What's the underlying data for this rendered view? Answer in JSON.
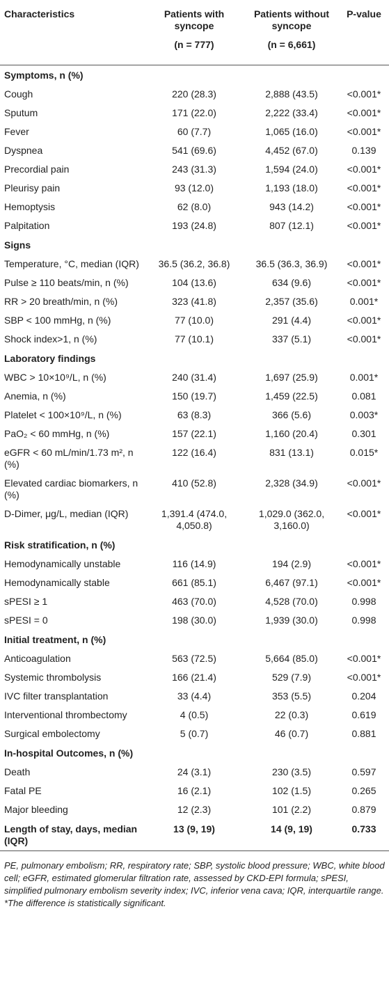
{
  "header": {
    "columns": [
      "Characteristics",
      "Patients with syncope",
      "Patients without syncope",
      "P-value"
    ],
    "counts": [
      "(n = 777)",
      "(n = 6,661)"
    ]
  },
  "sections": [
    {
      "title": "Symptoms, n (%)",
      "rows": [
        [
          "Cough",
          "220 (28.3)",
          "2,888 (43.5)",
          "<0.001*"
        ],
        [
          "Sputum",
          "171 (22.0)",
          "2,222 (33.4)",
          "<0.001*"
        ],
        [
          "Fever",
          "60 (7.7)",
          "1,065 (16.0)",
          "<0.001*"
        ],
        [
          "Dyspnea",
          "541 (69.6)",
          "4,452 (67.0)",
          "0.139"
        ],
        [
          "Precordial pain",
          "243 (31.3)",
          "1,594 (24.0)",
          "<0.001*"
        ],
        [
          "Pleurisy pain",
          "93 (12.0)",
          "1,193 (18.0)",
          "<0.001*"
        ],
        [
          "Hemoptysis",
          "62 (8.0)",
          "943 (14.2)",
          "<0.001*"
        ],
        [
          "Palpitation",
          "193 (24.8)",
          "807 (12.1)",
          "<0.001*"
        ]
      ]
    },
    {
      "title": "Signs",
      "rows": [
        [
          "Temperature, °C, median (IQR)",
          "36.5 (36.2, 36.8)",
          "36.5 (36.3, 36.9)",
          "<0.001*"
        ],
        [
          "Pulse ≥ 110 beats/min, n (%)",
          "104 (13.6)",
          "634 (9.6)",
          "<0.001*"
        ],
        [
          "RR > 20 breath/min, n (%)",
          "323 (41.8)",
          "2,357 (35.6)",
          "0.001*"
        ],
        [
          "SBP < 100 mmHg, n (%)",
          "77 (10.0)",
          "291 (4.4)",
          "<0.001*"
        ],
        [
          "Shock index>1, n (%)",
          "77 (10.1)",
          "337 (5.1)",
          "<0.001*"
        ]
      ]
    },
    {
      "title": "Laboratory findings",
      "rows": [
        [
          "WBC > 10×10⁹/L, n (%)",
          "240 (31.4)",
          "1,697 (25.9)",
          "0.001*"
        ],
        [
          "Anemia, n (%)",
          "150 (19.7)",
          "1,459 (22.5)",
          "0.081"
        ],
        [
          "Platelet < 100×10⁹/L, n (%)",
          "63 (8.3)",
          "366 (5.6)",
          "0.003*"
        ],
        [
          "PaO₂ < 60 mmHg, n (%)",
          "157 (22.1)",
          "1,160 (20.4)",
          "0.301"
        ],
        [
          "eGFR < 60 mL/min/1.73 m², n (%)",
          "122 (16.4)",
          "831 (13.1)",
          "0.015*"
        ],
        [
          "Elevated cardiac biomarkers, n (%)",
          "410 (52.8)",
          "2,328 (34.9)",
          "<0.001*"
        ],
        [
          "D-Dimer, μg/L, median (IQR)",
          "1,391.4 (474.0, 4,050.8)",
          "1,029.0 (362.0, 3,160.0)",
          "<0.001*"
        ]
      ]
    },
    {
      "title": "Risk stratification, n (%)",
      "rows": [
        [
          "Hemodynamically unstable",
          "116 (14.9)",
          "194 (2.9)",
          "<0.001*"
        ],
        [
          "Hemodynamically stable",
          "661 (85.1)",
          "6,467 (97.1)",
          "<0.001*"
        ],
        [
          "sPESI ≥ 1",
          "463 (70.0)",
          "4,528 (70.0)",
          "0.998"
        ],
        [
          "sPESI = 0",
          "198 (30.0)",
          "1,939 (30.0)",
          "0.998"
        ]
      ]
    },
    {
      "title": "Initial treatment, n (%)",
      "rows": [
        [
          "Anticoagulation",
          "563 (72.5)",
          "5,664 (85.0)",
          "<0.001*"
        ],
        [
          "Systemic thrombolysis",
          "166 (21.4)",
          "529 (7.9)",
          "<0.001*"
        ],
        [
          "IVC filter transplantation",
          "33 (4.4)",
          "353 (5.5)",
          "0.204"
        ],
        [
          "Interventional thrombectomy",
          "4 (0.5)",
          "22 (0.3)",
          "0.619"
        ],
        [
          "Surgical embolectomy",
          "5 (0.7)",
          "46 (0.7)",
          "0.881"
        ]
      ]
    },
    {
      "title": "In-hospital Outcomes, n (%)",
      "rows": [
        [
          "Death",
          "24 (3.1)",
          "230 (3.5)",
          "0.597"
        ],
        [
          "Fatal PE",
          "16 (2.1)",
          "102 (1.5)",
          "0.265"
        ],
        [
          "Major bleeding",
          "12 (2.3)",
          "101 (2.2)",
          "0.879"
        ]
      ]
    },
    {
      "title": "Length of stay, days, median (IQR)",
      "values": [
        "13 (9, 19)",
        "14 (9, 19)",
        "0.733"
      ],
      "rows": []
    }
  ],
  "footnotes": [
    "PE, pulmonary embolism; RR, respiratory rate; SBP, systolic blood pressure; WBC, white blood cell; eGFR, estimated glomerular filtration rate, assessed by CKD-EPI formula; sPESI, simplified pulmonary embolism severity index; IVC, inferior vena cava; IQR, interquartile range.",
    "*The difference is statistically significant."
  ]
}
